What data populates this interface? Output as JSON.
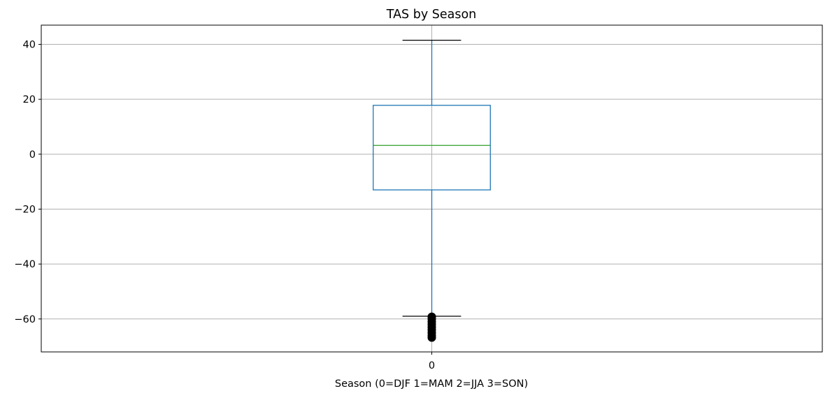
{
  "chart_data": {
    "type": "box",
    "title": "TAS by Season",
    "xlabel": "Season (0=DJF 1=MAM 2=JJA 3=SON)",
    "ylabel": "",
    "categories": [
      "0"
    ],
    "ylim": [
      -72,
      47
    ],
    "yticks": [
      40,
      20,
      0,
      -20,
      -40,
      -60
    ],
    "ytick_labels": [
      "40",
      "20",
      "0",
      "−20",
      "−40",
      "−60"
    ],
    "grid": true,
    "boxes": [
      {
        "category": "0",
        "whisker_high": 41.5,
        "q3": 17.8,
        "median": 3.2,
        "q1": -13.0,
        "whisker_low": -59.0,
        "outliers_low": [
          -59.2,
          -60.0,
          -61.0,
          -62.0,
          -63.0,
          -64.0,
          -65.0,
          -66.0,
          -66.8
        ]
      }
    ],
    "colors": {
      "box": "#1f77b4",
      "median": "#2ca02c",
      "cap": "#000000",
      "grid": "#b0b0b0",
      "outlier": "#000000"
    }
  }
}
